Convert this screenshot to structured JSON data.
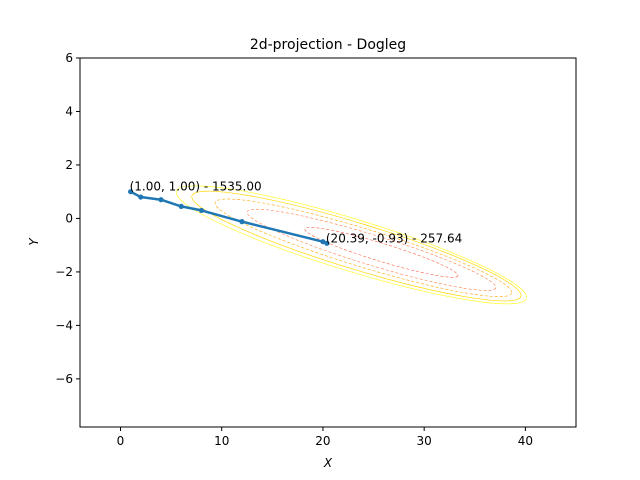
{
  "chart_data": {
    "type": "line",
    "title": "2d-projection - Dogleg",
    "xlabel": "X",
    "ylabel": "Y",
    "xlim": [
      -4,
      45
    ],
    "ylim": [
      -7.8,
      6
    ],
    "xticks": [
      0,
      10,
      20,
      30,
      40
    ],
    "yticks": [
      -6,
      -4,
      -2,
      0,
      2,
      4,
      6
    ],
    "grid": false,
    "series": [
      {
        "color": "#1f77b4",
        "x": [
          1.0,
          2.0,
          4.0,
          6.0,
          8.0,
          12.0,
          20.0,
          20.39
        ],
        "y": [
          1.0,
          0.8,
          0.7,
          0.45,
          0.3,
          -0.12,
          -0.87,
          -0.93
        ]
      }
    ],
    "contours": {
      "center": [
        24,
        -1.1
      ],
      "colors": [
        "#ff6347",
        "#ff7f50",
        "#ffa500",
        "#ffd700",
        "#ffff33"
      ],
      "levels": [
        1,
        2,
        3,
        4,
        5
      ]
    },
    "annotations": [
      {
        "text": "(1.00, 1.00) - 1535.00",
        "x": 1.0,
        "y": 1.0
      },
      {
        "text": "(20.39, -0.93) - 257.64",
        "x": 20.39,
        "y": -0.93
      }
    ]
  }
}
